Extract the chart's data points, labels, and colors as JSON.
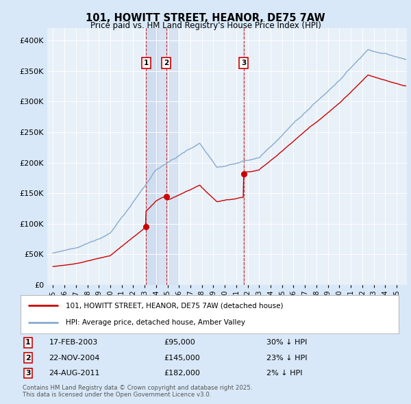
{
  "title": "101, HOWITT STREET, HEANOR, DE75 7AW",
  "subtitle": "Price paid vs. HM Land Registry's House Price Index (HPI)",
  "legend_property": "101, HOWITT STREET, HEANOR, DE75 7AW (detached house)",
  "legend_hpi": "HPI: Average price, detached house, Amber Valley",
  "footer": "Contains HM Land Registry data © Crown copyright and database right 2025.\nThis data is licensed under the Open Government Licence v3.0.",
  "sales": [
    {
      "num": 1,
      "date_str": "17-FEB-2003",
      "date_x": 2003.12,
      "price": 95000,
      "label": "30% ↓ HPI"
    },
    {
      "num": 2,
      "date_str": "22-NOV-2004",
      "date_x": 2004.89,
      "price": 145000,
      "label": "23% ↓ HPI"
    },
    {
      "num": 3,
      "date_str": "24-AUG-2011",
      "date_x": 2011.64,
      "price": 182000,
      "label": "2% ↓ HPI"
    }
  ],
  "property_color": "#cc0000",
  "hpi_color": "#88aacc",
  "background_color": "#d8e8f8",
  "plot_bg": "#e8f0f8",
  "shade_color": "#c8d8f0",
  "ylim": [
    0,
    420000
  ],
  "yticks": [
    0,
    50000,
    100000,
    150000,
    200000,
    250000,
    300000,
    350000,
    400000
  ],
  "xlim": [
    1994.5,
    2025.9
  ],
  "xtick_years": [
    1995,
    1996,
    1997,
    1998,
    1999,
    2000,
    2001,
    2002,
    2003,
    2004,
    2005,
    2006,
    2007,
    2008,
    2009,
    2010,
    2011,
    2012,
    2013,
    2014,
    2015,
    2016,
    2017,
    2018,
    2019,
    2020,
    2021,
    2022,
    2023,
    2024,
    2025
  ]
}
